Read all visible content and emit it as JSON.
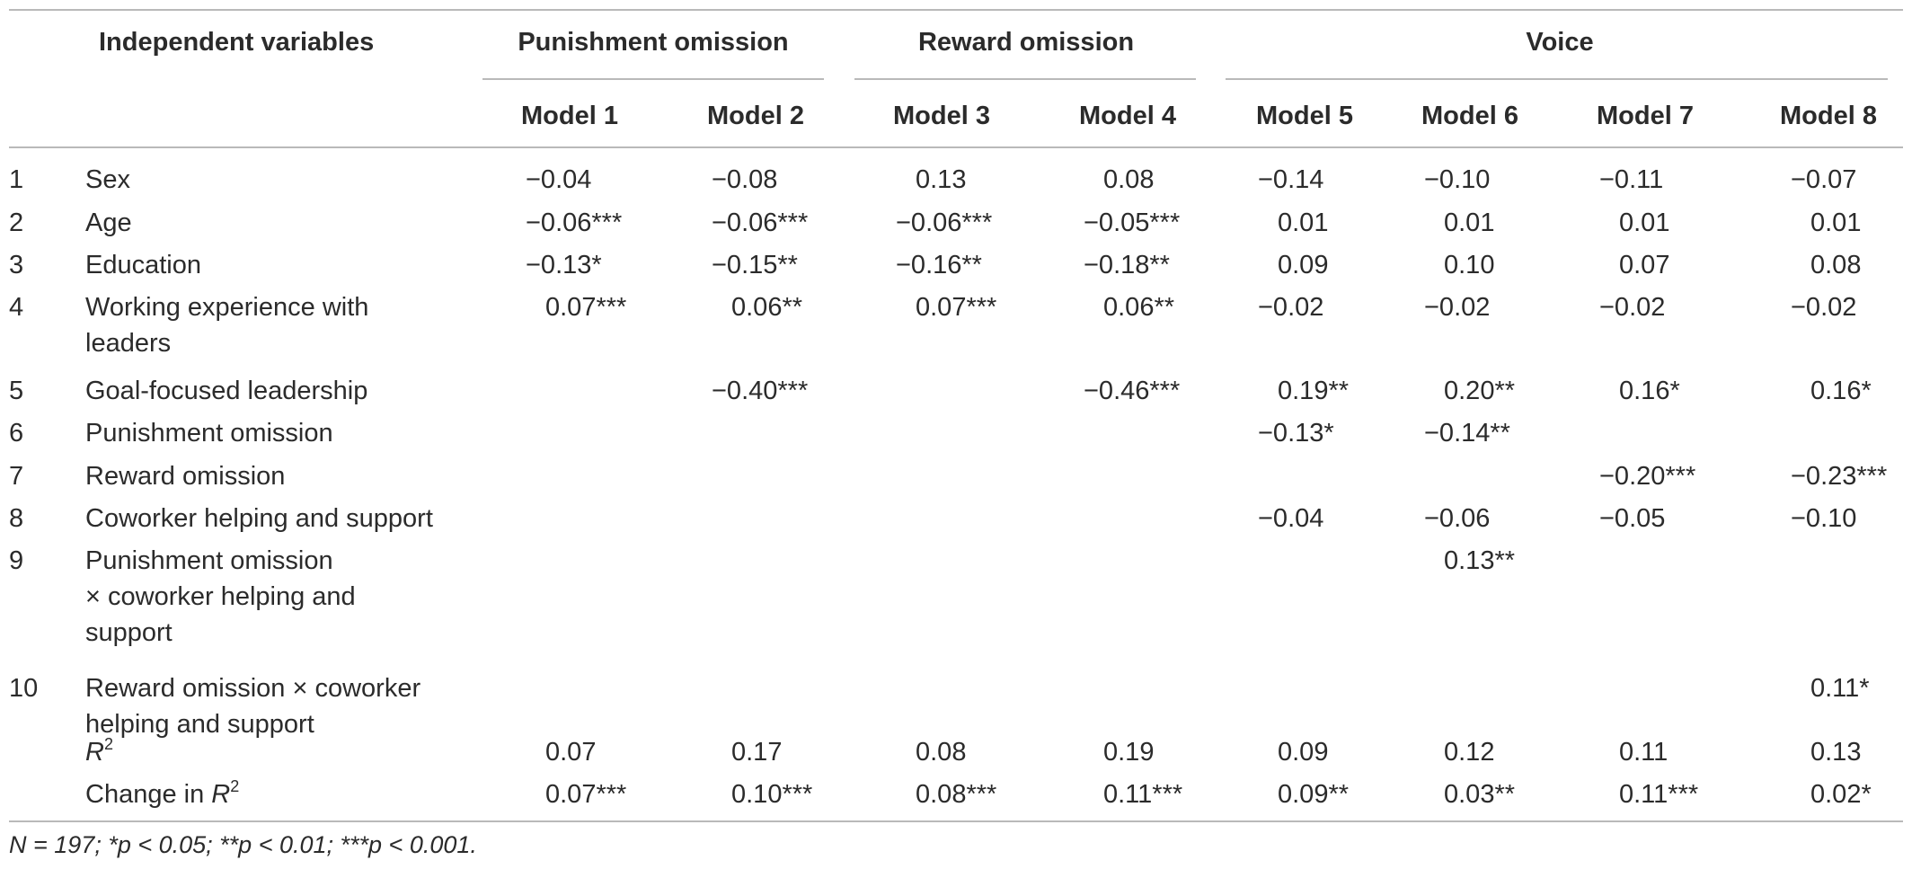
{
  "header": {
    "variables_label": "Independent variables",
    "groups": [
      "Punishment omission",
      "Reward omission",
      "Voice"
    ],
    "models": [
      "Model 1",
      "Model 2",
      "Model 3",
      "Model 4",
      "Model 5",
      "Model 6",
      "Model 7",
      "Model 8"
    ]
  },
  "rows": [
    {
      "num": "1",
      "label": [
        "Sex"
      ],
      "values": [
        "−0.04",
        "−0.08",
        "0.13",
        "0.08",
        "−0.14",
        "−0.10",
        "−0.11",
        "−0.07"
      ]
    },
    {
      "num": "2",
      "label": [
        "Age"
      ],
      "values": [
        "−0.06***",
        "−0.06***",
        "−0.06***",
        "−0.05***",
        "0.01",
        "0.01",
        "0.01",
        "0.01"
      ]
    },
    {
      "num": "3",
      "label": [
        "Education"
      ],
      "values": [
        "−0.13*",
        "−0.15**",
        "−0.16**",
        "−0.18**",
        "0.09",
        "0.10",
        "0.07",
        "0.08"
      ]
    },
    {
      "num": "4",
      "label": [
        "Working experience with",
        "leaders"
      ],
      "values": [
        "0.07***",
        "0.06**",
        "0.07***",
        "0.06**",
        "−0.02",
        "−0.02",
        "−0.02",
        "−0.02"
      ]
    },
    {
      "num": "5",
      "label": [
        "Goal-focused leadership"
      ],
      "values": [
        "",
        "−0.40***",
        "",
        "−0.46***",
        "0.19**",
        "0.20**",
        "0.16*",
        "0.16*"
      ]
    },
    {
      "num": "6",
      "label": [
        "Punishment omission"
      ],
      "values": [
        "",
        "",
        "",
        "",
        "−0.13*",
        "−0.14**",
        "",
        ""
      ]
    },
    {
      "num": "7",
      "label": [
        "Reward omission"
      ],
      "values": [
        "",
        "",
        "",
        "",
        "",
        "",
        "−0.20***",
        "−0.23***"
      ]
    },
    {
      "num": "8",
      "label": [
        "Coworker helping and support"
      ],
      "values": [
        "",
        "",
        "",
        "",
        "−0.04",
        "−0.06",
        "−0.05",
        "−0.10"
      ]
    },
    {
      "num": "9",
      "label": [
        "Punishment omission",
        "× coworker helping and",
        "support"
      ],
      "values": [
        "",
        "",
        "",
        "",
        "",
        "0.13**",
        "",
        ""
      ]
    },
    {
      "num": "10",
      "label": [
        "Reward omission ×  coworker",
        "helping and support"
      ],
      "values": [
        "",
        "",
        "",
        "",
        "",
        "",
        "",
        "0.11*"
      ]
    },
    {
      "num": "",
      "label": [
        "R"
      ],
      "sup": "2",
      "values": [
        "0.07",
        "0.17",
        "0.08",
        "0.19",
        "0.09",
        "0.12",
        "0.11",
        "0.13"
      ]
    },
    {
      "num": "",
      "label": [
        "Change in R"
      ],
      "sup": "2",
      "values": [
        "0.07***",
        "0.10***",
        "0.08***",
        "0.11***",
        "0.09**",
        "0.03**",
        "0.11***",
        "0.02*"
      ]
    }
  ],
  "footnote": "N = 197; *p < 0.05; **p < 0.01; ***p < 0.001."
}
